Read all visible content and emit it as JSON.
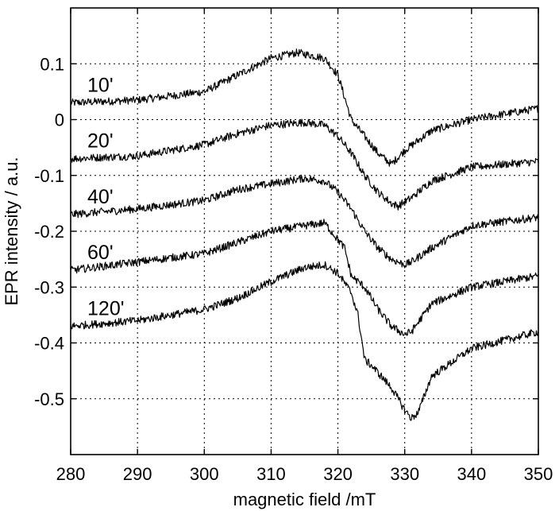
{
  "chart_data": {
    "type": "line",
    "title": "",
    "xlabel": "magnetic field /mT",
    "ylabel": "EPR intensity / a.u.",
    "xlim": [
      280,
      350
    ],
    "ylim": [
      -0.6,
      0.2
    ],
    "xticks": [
      280,
      290,
      300,
      310,
      320,
      330,
      340,
      350
    ],
    "xtick_labels": [
      "280",
      "290",
      "300",
      "310",
      "320",
      "330",
      "340",
      "350"
    ],
    "yticks": [
      0.1,
      0,
      -0.1,
      -0.2,
      -0.3,
      -0.4,
      -0.5
    ],
    "ytick_labels": [
      "0.1",
      "0",
      "-0.1",
      "-0.2",
      "-0.3",
      "-0.4",
      "-0.5"
    ],
    "grid": true,
    "legend": "none",
    "line_color": "#000000",
    "series": [
      {
        "label_text": "10'",
        "label_at": [
          282.5,
          0.05
        ],
        "x": [
          280,
          290,
          300,
          305,
          310,
          314,
          318,
          320,
          321,
          322,
          324,
          326,
          328,
          330,
          334,
          340,
          350
        ],
        "y": [
          0.03,
          0.035,
          0.05,
          0.08,
          0.11,
          0.12,
          0.11,
          0.08,
          0.04,
          0.0,
          -0.03,
          -0.06,
          -0.08,
          -0.055,
          -0.02,
          0.0,
          0.02
        ]
      },
      {
        "label_text": "20'",
        "label_at": [
          282.5,
          -0.05
        ],
        "x": [
          280,
          290,
          300,
          305,
          310,
          315,
          318,
          320,
          322,
          324,
          326,
          328,
          329,
          331,
          334,
          340,
          350
        ],
        "y": [
          -0.07,
          -0.065,
          -0.045,
          -0.025,
          -0.01,
          -0.005,
          -0.01,
          -0.03,
          -0.06,
          -0.1,
          -0.13,
          -0.15,
          -0.155,
          -0.14,
          -0.11,
          -0.085,
          -0.075
        ]
      },
      {
        "label_text": "40'",
        "label_at": [
          282.5,
          -0.15
        ],
        "x": [
          280,
          290,
          300,
          305,
          310,
          315,
          318,
          320,
          322,
          324,
          326,
          328,
          330,
          331,
          334,
          340,
          350
        ],
        "y": [
          -0.17,
          -0.16,
          -0.145,
          -0.125,
          -0.115,
          -0.105,
          -0.11,
          -0.13,
          -0.16,
          -0.2,
          -0.23,
          -0.25,
          -0.26,
          -0.255,
          -0.23,
          -0.19,
          -0.175
        ]
      },
      {
        "label_text": "60'",
        "label_at": [
          282.5,
          -0.25
        ],
        "x": [
          280,
          290,
          300,
          305,
          310,
          315,
          318,
          319,
          321,
          322,
          324,
          326,
          328,
          330,
          331,
          334,
          340,
          350
        ],
        "y": [
          -0.27,
          -0.255,
          -0.24,
          -0.22,
          -0.2,
          -0.19,
          -0.185,
          -0.2,
          -0.23,
          -0.28,
          -0.3,
          -0.34,
          -0.37,
          -0.385,
          -0.38,
          -0.33,
          -0.3,
          -0.28
        ]
      },
      {
        "label_text": "120'",
        "label_at": [
          282.5,
          -0.35
        ],
        "x": [
          280,
          290,
          300,
          305,
          310,
          315,
          318,
          320,
          322,
          323,
          324,
          325,
          328,
          330,
          331,
          332,
          334,
          340,
          350
        ],
        "y": [
          -0.37,
          -0.36,
          -0.34,
          -0.32,
          -0.29,
          -0.265,
          -0.26,
          -0.275,
          -0.31,
          -0.35,
          -0.43,
          -0.44,
          -0.48,
          -0.52,
          -0.535,
          -0.525,
          -0.46,
          -0.41,
          -0.38
        ]
      }
    ]
  }
}
